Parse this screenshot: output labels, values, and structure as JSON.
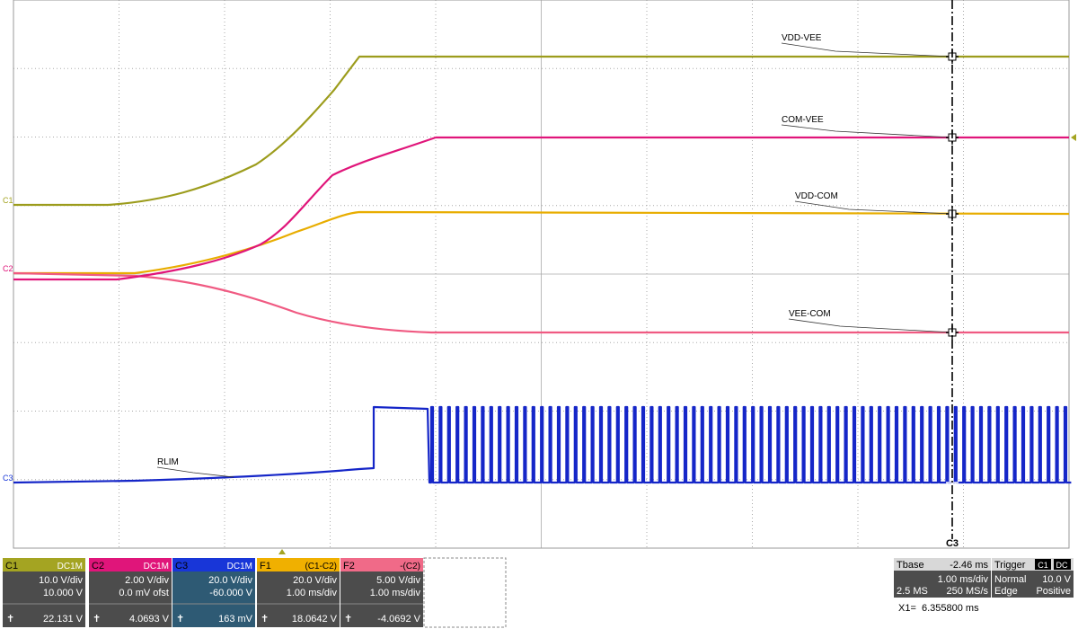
{
  "screen": {
    "trace_labels": [
      {
        "text": "VDD-VEE",
        "color": "#9c9c1c"
      },
      {
        "text": "COM-VEE",
        "color": "#e0157a"
      },
      {
        "text": "VDD-COM",
        "color": "#e8ad00"
      },
      {
        "text": "VEE-COM",
        "color": "#f05a82"
      },
      {
        "text": "RLIM",
        "color": "#1526c8"
      }
    ],
    "left_markers": [
      "C1",
      "C2",
      "C3"
    ],
    "cursor_label": "C3"
  },
  "channels": [
    {
      "name": "C1",
      "tag": "DC1M",
      "color": "#a4a422",
      "body": "#4c4c4c",
      "line1": "10.0 V/div",
      "line2": "10.000 V",
      "reading": "22.131 V"
    },
    {
      "name": "C2",
      "tag": "DC1M",
      "color": "#e0157a",
      "body": "#4c4c4c",
      "line1": "2.00 V/div",
      "line2": "0.0 mV ofst",
      "reading": "4.0693 V"
    },
    {
      "name": "C3",
      "tag": "DC1M",
      "color": "#1836d8",
      "body": "#2e5a74",
      "line1": "20.0 V/div",
      "line2": "-60.000 V",
      "reading": "163 mV"
    },
    {
      "name": "F1",
      "tag": "(C1-C2)",
      "color": "#f0b000",
      "body": "#4c4c4c",
      "line1": "20.0 V/div",
      "line2": "1.00 ms/div",
      "reading": "18.0642 V"
    },
    {
      "name": "F2",
      "tag": "-(C2)",
      "color": "#f06a88",
      "body": "#4c4c4c",
      "line1": "5.00 V/div",
      "line2": "1.00 ms/div",
      "reading": "-4.0692 V"
    }
  ],
  "timebase": {
    "title": "Tbase",
    "offset": "-2.46 ms",
    "per_div": "1.00 ms/div",
    "samples": "2.5 MS",
    "rate": "250 MS/s"
  },
  "trigger": {
    "title": "Trigger",
    "source": "C1",
    "coupling": "DC",
    "mode": "Normal",
    "level": "10.0 V",
    "type": "Edge",
    "slope": "Positive"
  },
  "cursor": {
    "readout": "X1=  6.355800 ms"
  }
}
